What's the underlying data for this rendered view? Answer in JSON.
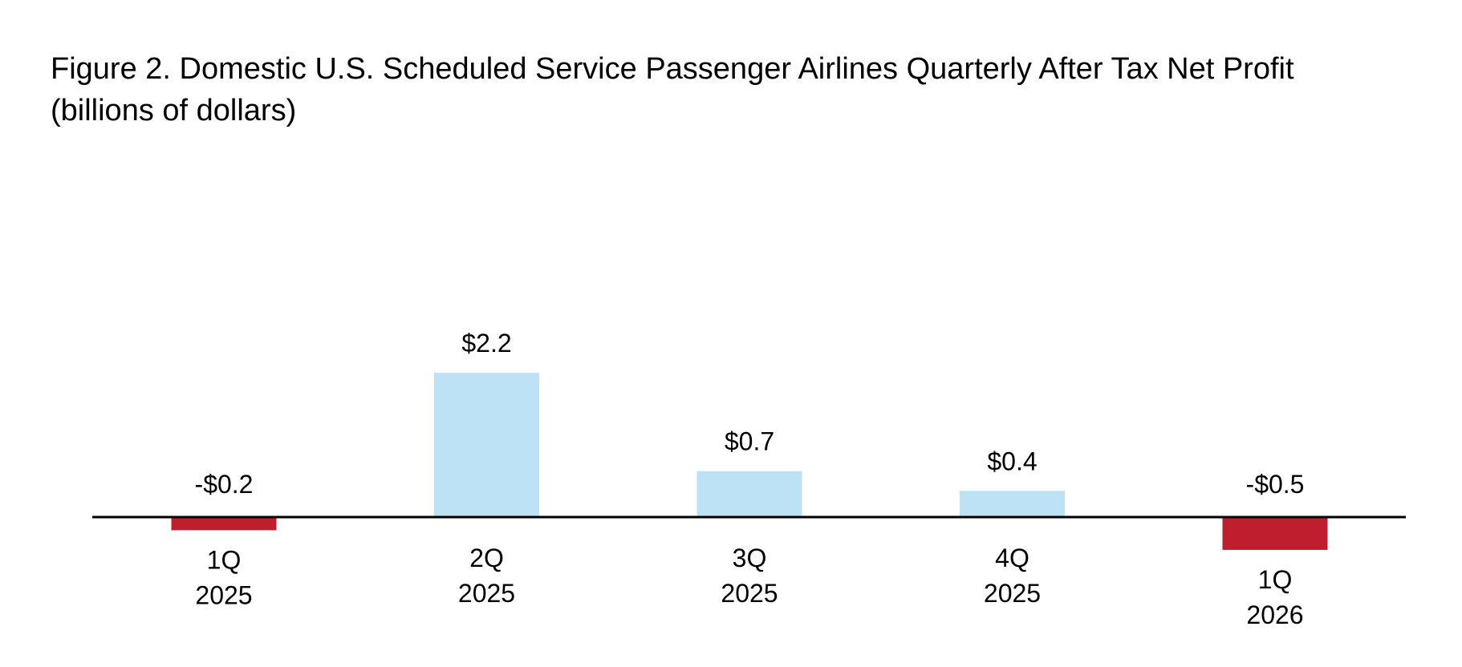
{
  "chart_data": {
    "type": "bar",
    "title": "Figure 2. Domestic U.S. Scheduled Service Passenger Airlines Quarterly After Tax Net Profit",
    "subtitle": "(billions of dollars)",
    "categories": [
      [
        "1Q",
        "2025"
      ],
      [
        "2Q",
        "2025"
      ],
      [
        "3Q",
        "2025"
      ],
      [
        "4Q",
        "2025"
      ],
      [
        "1Q",
        "2026"
      ]
    ],
    "values": [
      -0.2,
      2.2,
      0.7,
      0.4,
      -0.5
    ],
    "data_labels": [
      "-$0.2",
      "$2.2",
      "$0.7",
      "$0.4",
      "-$0.5"
    ],
    "xlabel": "",
    "ylabel": "",
    "ylim": [
      -0.6,
      2.2
    ],
    "grid": false,
    "legend": "none",
    "colors": {
      "positive": "#BDE2F6",
      "negative": "#BE1E2D",
      "axis": "#000000"
    }
  }
}
